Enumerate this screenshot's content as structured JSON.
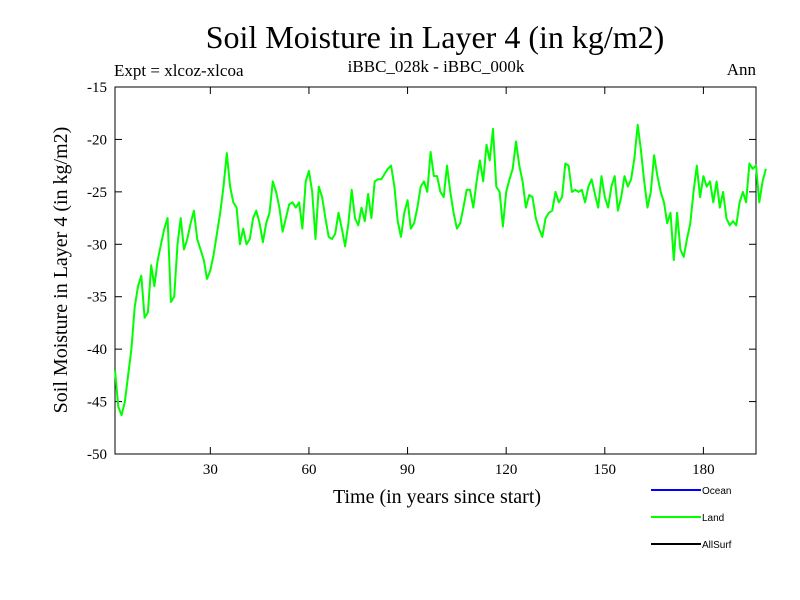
{
  "chart_data": {
    "type": "line",
    "title": "Soil Moisture in Layer 4 (in kg/m2)",
    "expt_label": "Expt = xlcoz-xlcoa",
    "comparison_label": "iBBC_028k - iBBC_000k",
    "season_label": "Ann",
    "xlabel": "Time (in years since start)",
    "ylabel": "Soil Moisture in Layer 4 (in kg/m2)",
    "xlim": [
      1,
      196
    ],
    "ylim": [
      -50,
      -15
    ],
    "xticks": [
      30,
      60,
      90,
      120,
      150,
      180
    ],
    "yticks": [
      -15,
      -20,
      -25,
      -30,
      -35,
      -40,
      -45,
      -50
    ],
    "legend": [
      {
        "name": "Ocean",
        "color": "#0000ff"
      },
      {
        "name": "Land",
        "color": "#00ff00"
      },
      {
        "name": "AllSurf",
        "color": "#000000"
      }
    ],
    "series": [
      {
        "name": "Land",
        "color": "#00ff00",
        "x_start": 1,
        "values": [
          -42.0,
          -45.5,
          -46.3,
          -45.0,
          -42.5,
          -40.0,
          -36.0,
          -34.0,
          -33.0,
          -37.0,
          -36.5,
          -32.0,
          -34.0,
          -31.5,
          -30.0,
          -28.5,
          -27.5,
          -35.5,
          -35.0,
          -30.0,
          -27.5,
          -30.5,
          -29.5,
          -28.0,
          -26.8,
          -29.5,
          -30.5,
          -31.5,
          -33.3,
          -32.5,
          -31.0,
          -29.0,
          -27.0,
          -24.5,
          -21.3,
          -24.5,
          -26.0,
          -26.5,
          -30.0,
          -28.5,
          -30.0,
          -29.5,
          -27.5,
          -26.8,
          -28.0,
          -29.8,
          -28.0,
          -27.0,
          -24.0,
          -25.0,
          -26.5,
          -28.8,
          -27.5,
          -26.2,
          -26.0,
          -26.5,
          -26.0,
          -28.5,
          -24.0,
          -23.0,
          -25.0,
          -29.5,
          -24.5,
          -25.5,
          -27.5,
          -29.3,
          -29.5,
          -29.0,
          -27.0,
          -28.5,
          -30.2,
          -28.0,
          -24.8,
          -27.5,
          -28.2,
          -26.5,
          -27.8,
          -25.2,
          -27.5,
          -24.0,
          -23.8,
          -23.8,
          -23.3,
          -22.8,
          -22.5,
          -24.5,
          -27.8,
          -29.3,
          -27.0,
          -25.8,
          -28.5,
          -28.0,
          -26.5,
          -24.5,
          -24.0,
          -25.0,
          -21.2,
          -23.5,
          -23.5,
          -25.0,
          -25.5,
          -22.5,
          -25.0,
          -27.0,
          -28.5,
          -28.0,
          -26.5,
          -24.8,
          -24.8,
          -26.5,
          -24.0,
          -22.0,
          -24.0,
          -20.5,
          -22.0,
          -19.0,
          -24.5,
          -25.0,
          -28.3,
          -25.0,
          -23.8,
          -22.8,
          -20.2,
          -22.5,
          -24.0,
          -26.5,
          -25.3,
          -25.5,
          -27.5,
          -28.5,
          -29.3,
          -27.5,
          -27.0,
          -26.8,
          -25.0,
          -26.0,
          -25.5,
          -22.3,
          -22.5,
          -25.0,
          -24.8,
          -25.0,
          -24.8,
          -26.0,
          -24.5,
          -23.8,
          -25.2,
          -26.5,
          -23.5,
          -25.5,
          -26.5,
          -24.5,
          -23.5,
          -26.8,
          -25.5,
          -23.5,
          -24.5,
          -23.8,
          -21.8,
          -18.6,
          -21.0,
          -24.0,
          -26.5,
          -25.0,
          -21.5,
          -23.5,
          -25.0,
          -26.0,
          -28.0,
          -27.0,
          -31.5,
          -27.0,
          -30.5,
          -31.2,
          -29.5,
          -28.0,
          -25.0,
          -22.5,
          -25.5,
          -23.5,
          -24.5,
          -24.0,
          -26.0,
          -24.0,
          -26.5,
          -25.0,
          -27.5,
          -28.2,
          -27.8,
          -28.2,
          -26.0,
          -25.0,
          -26.0,
          -22.3,
          -22.8,
          -22.5,
          -26.0,
          -24.0,
          -22.8
        ]
      }
    ]
  }
}
